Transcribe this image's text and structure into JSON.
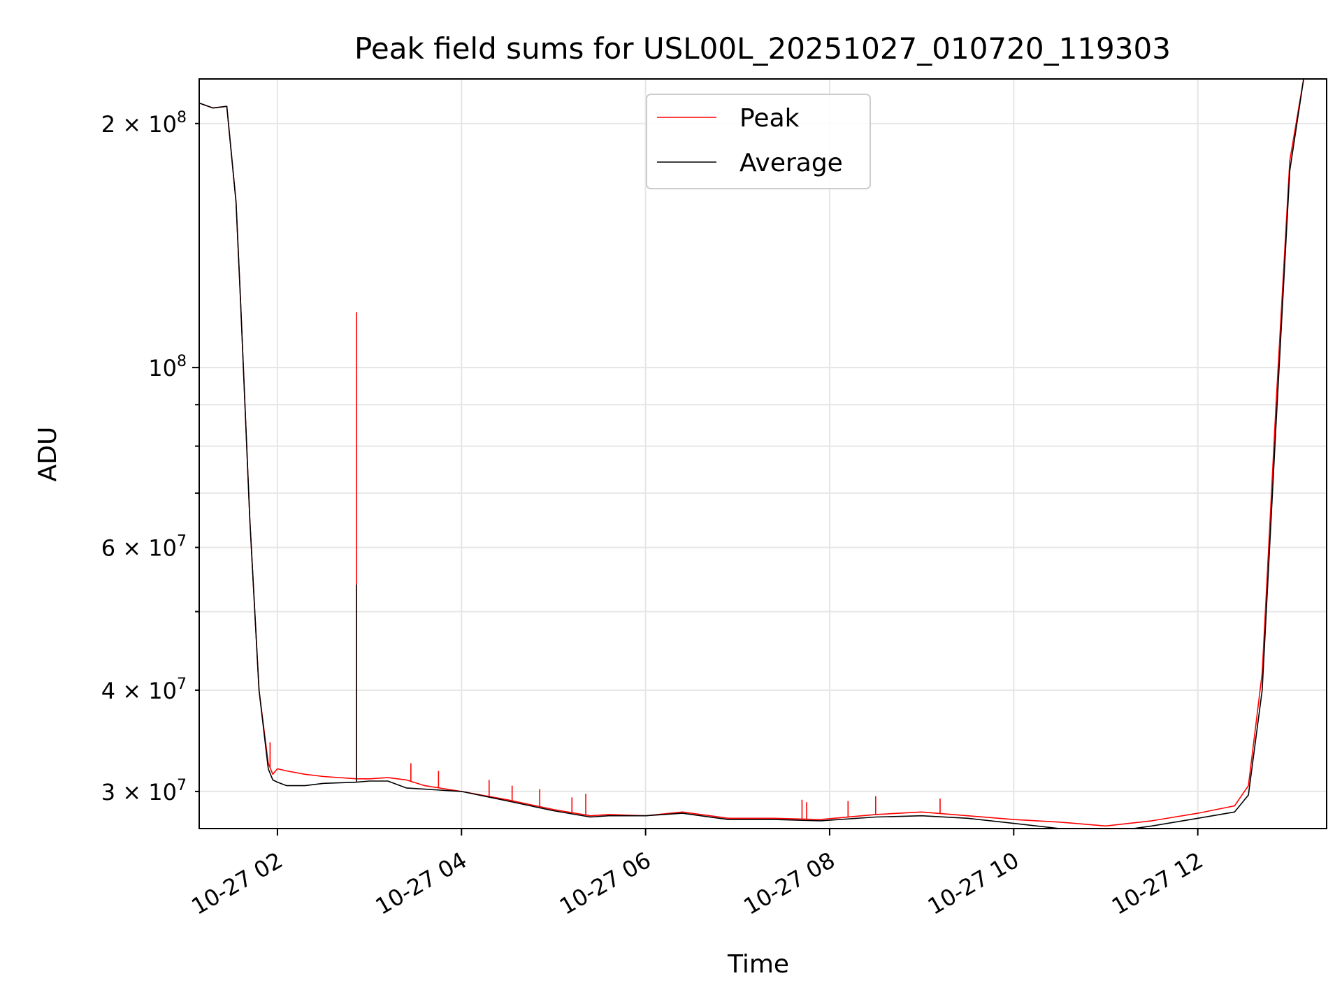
{
  "chart_data": {
    "type": "line",
    "title": "Peak field sums for USL00L_20251027_010720_119303",
    "xlabel": "Time",
    "ylabel": "ADU",
    "yscale": "log",
    "grid": true,
    "legend_position": "top-center",
    "xlim_hours": [
      1.15,
      13.4
    ],
    "ylim": [
      27000000,
      227000000
    ],
    "x_ticks": [
      {
        "hour": 2,
        "label": "10-27 02"
      },
      {
        "hour": 4,
        "label": "10-27 04"
      },
      {
        "hour": 6,
        "label": "10-27 06"
      },
      {
        "hour": 8,
        "label": "10-27 08"
      },
      {
        "hour": 10,
        "label": "10-27 10"
      },
      {
        "hour": 12,
        "label": "10-27 12"
      }
    ],
    "y_major_ticks": [
      {
        "value": 100000000,
        "base": "10",
        "exp": "8"
      }
    ],
    "y_minor_ticks": [
      {
        "value": 30000000,
        "mant": "3",
        "base": "10",
        "exp": "7"
      },
      {
        "value": 40000000,
        "mant": "4",
        "base": "10",
        "exp": "7"
      },
      {
        "value": 60000000,
        "mant": "6",
        "base": "10",
        "exp": "7"
      },
      {
        "value": 200000000,
        "mant": "2",
        "base": "10",
        "exp": "8"
      }
    ],
    "y_unlabeled_minor": [
      50000000,
      70000000,
      80000000,
      90000000
    ],
    "series": [
      {
        "name": "Peak",
        "color": "#ff0000",
        "x_hours": [
          1.15,
          1.3,
          1.45,
          1.55,
          1.6,
          1.7,
          1.8,
          1.9,
          1.95,
          2.0,
          2.1,
          2.3,
          2.5,
          2.86,
          3.0,
          3.2,
          3.4,
          3.6,
          4.0,
          4.5,
          5.0,
          5.4,
          5.6,
          6.0,
          6.4,
          6.9,
          7.4,
          7.9,
          8.5,
          9.0,
          9.5,
          10.0,
          10.5,
          11.0,
          11.5,
          12.0,
          12.4,
          12.55,
          12.7,
          12.85,
          13.0,
          13.15,
          13.4
        ],
        "values": [
          212000000,
          209000000,
          210000000,
          160000000,
          120000000,
          65000000,
          40000000,
          32500000,
          31500000,
          32000000,
          31800000,
          31500000,
          31300000,
          31100000,
          31100000,
          31200000,
          31000000,
          30500000,
          30000000,
          29300000,
          28500000,
          28000000,
          28100000,
          28000000,
          28300000,
          27800000,
          27800000,
          27700000,
          28100000,
          28300000,
          28000000,
          27700000,
          27500000,
          27200000,
          27600000,
          28200000,
          28800000,
          30500000,
          42000000,
          90000000,
          180000000,
          227000000,
          227000000
        ],
        "spikes": [
          {
            "hour": 2.86,
            "value": 117000000
          },
          {
            "hour": 1.92,
            "value": 34500000
          },
          {
            "hour": 3.45,
            "value": 32500000
          },
          {
            "hour": 3.75,
            "value": 31800000
          },
          {
            "hour": 4.3,
            "value": 31000000
          },
          {
            "hour": 4.55,
            "value": 30500000
          },
          {
            "hour": 4.85,
            "value": 30200000
          },
          {
            "hour": 5.2,
            "value": 29500000
          },
          {
            "hour": 5.35,
            "value": 29800000
          },
          {
            "hour": 7.7,
            "value": 29300000
          },
          {
            "hour": 7.75,
            "value": 29100000
          },
          {
            "hour": 8.2,
            "value": 29200000
          },
          {
            "hour": 8.5,
            "value": 29600000
          },
          {
            "hour": 9.2,
            "value": 29400000
          }
        ]
      },
      {
        "name": "Average",
        "color": "#000000",
        "x_hours": [
          1.15,
          1.3,
          1.45,
          1.55,
          1.6,
          1.7,
          1.8,
          1.9,
          1.95,
          2.0,
          2.1,
          2.3,
          2.5,
          2.86,
          3.0,
          3.2,
          3.4,
          3.6,
          4.0,
          4.5,
          5.0,
          5.4,
          5.6,
          6.0,
          6.4,
          6.9,
          7.4,
          7.9,
          8.5,
          9.0,
          9.5,
          10.0,
          10.5,
          11.0,
          11.5,
          12.0,
          12.4,
          12.55,
          12.7,
          12.85,
          13.0,
          13.15,
          13.4
        ],
        "values": [
          212000000,
          209000000,
          210000000,
          160000000,
          120000000,
          65000000,
          40000000,
          32000000,
          31000000,
          30800000,
          30500000,
          30500000,
          30700000,
          30800000,
          30900000,
          30900000,
          30300000,
          30200000,
          30000000,
          29200000,
          28400000,
          27900000,
          28000000,
          28000000,
          28200000,
          27700000,
          27700000,
          27600000,
          27900000,
          28000000,
          27800000,
          27400000,
          27000000,
          26700000,
          27200000,
          27800000,
          28300000,
          29700000,
          40000000,
          85000000,
          175000000,
          227000000,
          227000000
        ],
        "spikes": [
          {
            "hour": 2.86,
            "value": 54000000
          }
        ]
      }
    ]
  }
}
